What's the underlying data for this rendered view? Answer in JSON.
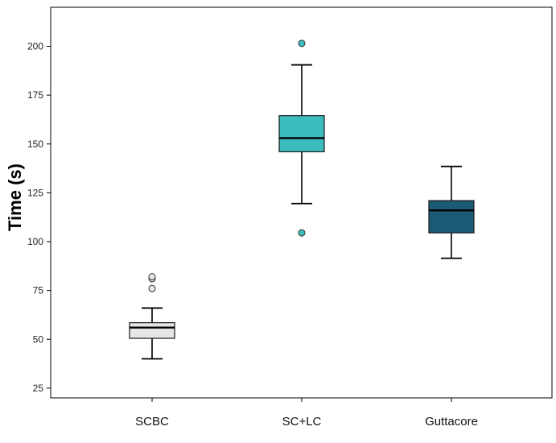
{
  "chart_data": {
    "type": "boxplot",
    "title": "",
    "xlabel": "",
    "ylabel": "Time (s)",
    "ylim": [
      20,
      220
    ],
    "yticks": [
      25,
      50,
      75,
      100,
      125,
      150,
      175,
      200
    ],
    "ytick_labels": [
      "25",
      "50",
      "75",
      "100",
      "125",
      "150",
      "175",
      "200"
    ],
    "grid": false,
    "categories": [
      "SCBC",
      "SC+LC",
      "Guttacore"
    ],
    "series": [
      {
        "name": "SCBC",
        "color": "#e6e6e6",
        "whisker_low": 40,
        "q1": 50.5,
        "median": 56,
        "q3": 58.5,
        "whisker_high": 66,
        "outliers": [
          76,
          81,
          82
        ]
      },
      {
        "name": "SC+LC",
        "color": "#3dbcbd",
        "whisker_low": 119.5,
        "q1": 146,
        "median": 153,
        "q3": 164.5,
        "whisker_high": 190.5,
        "outliers": [
          104.5,
          201.5
        ]
      },
      {
        "name": "Guttacore",
        "color": "#1d5a75",
        "whisker_low": 91.5,
        "q1": 104.5,
        "median": 116,
        "q3": 121,
        "whisker_high": 138.5,
        "outliers": []
      }
    ]
  }
}
